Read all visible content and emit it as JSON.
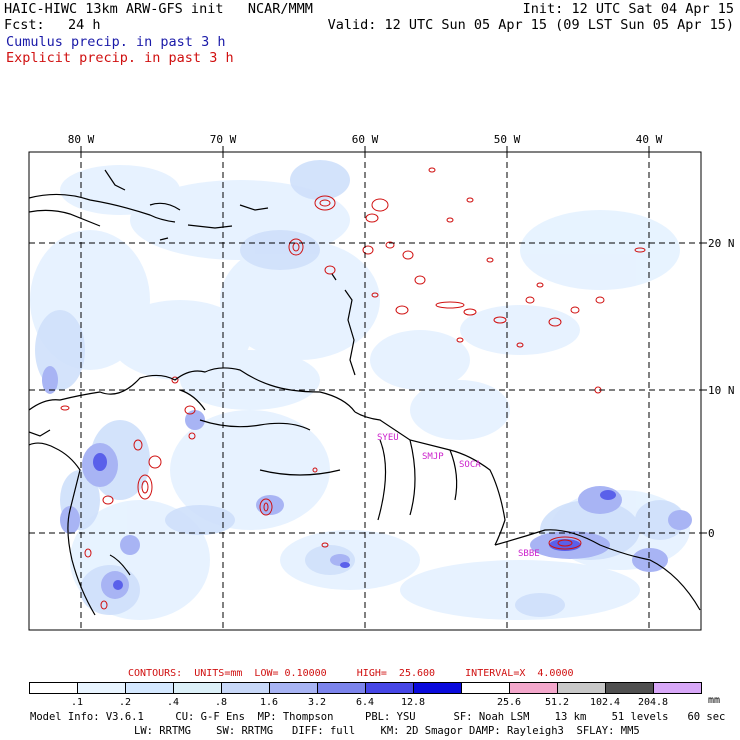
{
  "header": {
    "title_left": "HAIC-HIWC 13km ARW-GFS init   NCAR/MMM",
    "init": "Init: 12 UTC Sat 04 Apr 15",
    "fcst_label": "Fcst:",
    "fcst_value": "24 h",
    "valid": "Valid: 12 UTC Sun 05 Apr 15 (09 LST Sun 05 Apr 15)",
    "legend_cumulus": "Cumulus precip. in past 3 h",
    "legend_explicit": "Explicit precip. in past 3 h"
  },
  "map": {
    "lon_labels": [
      "80 W",
      "70 W",
      "60 W",
      "50 W",
      "40 W"
    ],
    "lat_labels": [
      "20 N",
      "10 N",
      "0"
    ],
    "stations": [
      "SYEU",
      "SMJP",
      "SOCA",
      "SBBE"
    ],
    "colors": {
      "cumulus": "#1a1aa8",
      "explicit": "#d01010",
      "station": "#cc22cc",
      "coast": "#000000",
      "grid": "#000000"
    }
  },
  "footer": {
    "contours": "CONTOURS:  UNITS=mm  LOW= 0.10000     HIGH=  25.600     INTERVAL=X  4.0000",
    "colorbar_labels": [
      ".1",
      ".2",
      ".4",
      ".8",
      "1.6",
      "3.2",
      "6.4",
      "12.8",
      "25.6",
      "51.2",
      "102.4",
      "204.8"
    ],
    "colorbar_colors": [
      "#ffffff",
      "#e8f4ff",
      "#d4e8ff",
      "#dcf0f8",
      "#c8d8f8",
      "#a8b4f4",
      "#7c84ec",
      "#4646e6",
      "#0a0adc",
      "#ffffff",
      "#f4a8cc",
      "#c8c8c8",
      "#505050",
      "#d8a8f8"
    ],
    "unit": "mm",
    "model_info_1": "Model Info: V3.6.1     CU: G-F Ens  MP: Thompson     PBL: YSU      SF: Noah LSM    13 km    51 levels   60 sec",
    "model_info_2": "LW: RRTMG    SW: RRTMG   DIFF: full    KM: 2D Smagor DAMP: Rayleigh3  SFLAY: MM5"
  }
}
